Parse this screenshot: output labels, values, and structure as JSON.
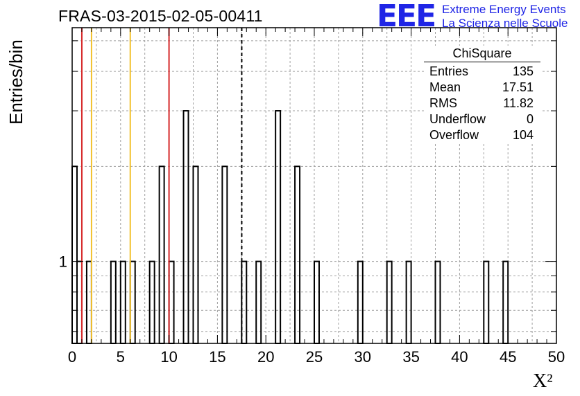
{
  "header": {
    "title": "FRAS-03-2015-02-05-00411",
    "logo_mark": "EEE",
    "logo_line1": "Extreme Energy Events",
    "logo_line2": "La Scienza nelle Scuole"
  },
  "stats_box": {
    "title": "ChiSquare",
    "rows": [
      {
        "label": "Entries",
        "value": "135"
      },
      {
        "label": "Mean",
        "value": "17.51"
      },
      {
        "label": "RMS",
        "value": "11.82"
      },
      {
        "label": "Underflow",
        "value": "0"
      },
      {
        "label": "Overflow",
        "value": "104"
      }
    ]
  },
  "chart_data": {
    "type": "bar",
    "histogram": true,
    "title": "FRAS-03-2015-02-05-00411",
    "xlabel": "X²",
    "ylabel": "Entries/bin",
    "xlim": [
      0,
      50
    ],
    "ylog": true,
    "y_tick_labels": [
      "1"
    ],
    "x_ticks": [
      0,
      5,
      10,
      15,
      20,
      25,
      30,
      35,
      40,
      45,
      50
    ],
    "bin_width": 0.5,
    "grid": true,
    "bins": [
      {
        "x": 0.0,
        "count": 2
      },
      {
        "x": 0.5,
        "count": 1
      },
      {
        "x": 1.5,
        "count": 1
      },
      {
        "x": 4.0,
        "count": 1
      },
      {
        "x": 5.0,
        "count": 1
      },
      {
        "x": 6.0,
        "count": 1
      },
      {
        "x": 8.0,
        "count": 1
      },
      {
        "x": 9.0,
        "count": 2
      },
      {
        "x": 10.0,
        "count": 1
      },
      {
        "x": 11.5,
        "count": 3
      },
      {
        "x": 12.5,
        "count": 2
      },
      {
        "x": 15.5,
        "count": 2
      },
      {
        "x": 17.5,
        "count": 1
      },
      {
        "x": 19.0,
        "count": 1
      },
      {
        "x": 21.0,
        "count": 3
      },
      {
        "x": 23.0,
        "count": 2
      },
      {
        "x": 25.0,
        "count": 1
      },
      {
        "x": 29.5,
        "count": 1
      },
      {
        "x": 32.5,
        "count": 1
      },
      {
        "x": 34.5,
        "count": 1
      },
      {
        "x": 37.5,
        "count": 1
      },
      {
        "x": 42.5,
        "count": 1
      },
      {
        "x": 44.5,
        "count": 1
      }
    ],
    "vertical_lines": [
      {
        "x": 1.0,
        "color": "#d62728",
        "style": "solid"
      },
      {
        "x": 2.0,
        "color": "#f2c12e",
        "style": "solid"
      },
      {
        "x": 6.0,
        "color": "#f2c12e",
        "style": "solid"
      },
      {
        "x": 10.0,
        "color": "#d62728",
        "style": "solid"
      },
      {
        "x": 17.51,
        "color": "#000000",
        "style": "dashed"
      }
    ]
  }
}
